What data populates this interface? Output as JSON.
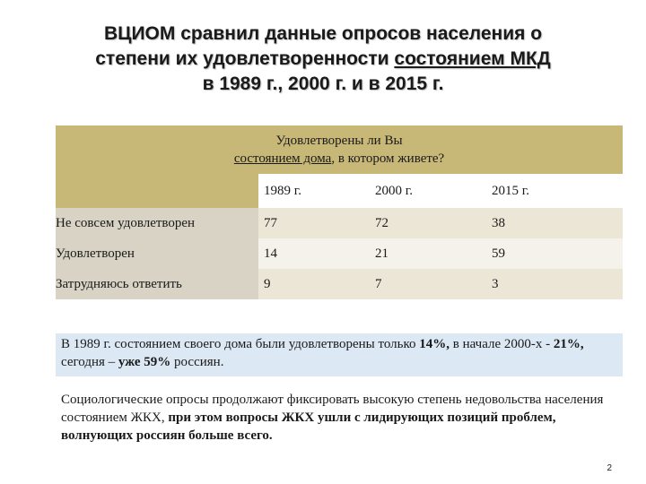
{
  "title": {
    "line1": "ВЦИОМ сравнил данные опросов населения о",
    "line2_part1": "степени их удовлетворенности ",
    "line2_underlined": "состоянием МКД",
    "line3": "в 1989 г., 2000 г. и в 2015 г."
  },
  "table": {
    "question_line1": "Удовлетворены ли Вы",
    "question_line2_underlined": "состоянием дома",
    "question_line2_rest": ", в котором живете?",
    "years": [
      "1989 г.",
      "2000 г.",
      "2015 г."
    ],
    "rows": [
      {
        "label": "Не совсем удовлетворен",
        "values": [
          "77",
          "72",
          "38"
        ]
      },
      {
        "label": "Удовлетворен",
        "values": [
          "14",
          "21",
          "59"
        ]
      },
      {
        "label": "Затрудняюсь ответить",
        "values": [
          "9",
          "7",
          "3"
        ]
      }
    ]
  },
  "summary": {
    "t1": "В 1989 г. состоянием своего дома были удовлетворены только ",
    "b1": "14%,",
    "t2": " в начале 2000-х - ",
    "b2": "21%,",
    "t3": " сегодня – ",
    "b3": "уже 59%",
    "t4": " россиян."
  },
  "conclusion": {
    "normal": "Социологические опросы продолжают фиксировать высокую степень недовольства населения состоянием ЖКХ, ",
    "bold": "при этом вопросы ЖКХ ушли с лидирующих позиций проблем, волнующих россиян больше всего."
  },
  "page_number": "2",
  "colors": {
    "header_fill": "#c8b878",
    "row_label_fill": "#d8d3c4",
    "summary_fill": "#dce8f3"
  }
}
